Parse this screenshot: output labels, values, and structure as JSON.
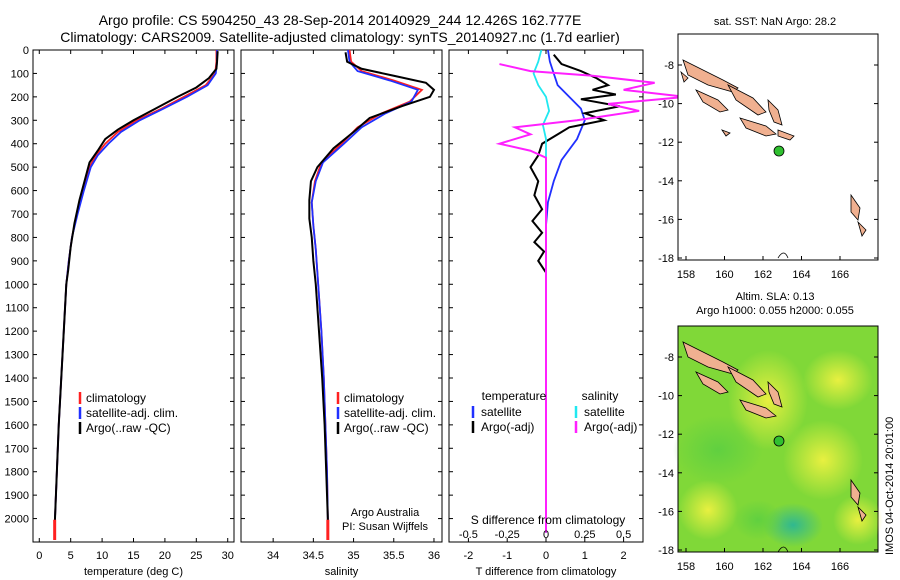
{
  "header": {
    "line1": "Argo profile: CS 5904250_43 28-Sep-2014 20140929_244 12.426S 162.777E",
    "line2": "Climatology: CARS2009. Satellite-adjusted climatology: synTS_20140927.nc (1.7d earlier)"
  },
  "colors": {
    "clim": "#ff2020",
    "sat": "#2030ff",
    "argo": "#000000",
    "sat_s": "#20e8f0",
    "argo_s": "#ff20ff",
    "land": "#f0b090",
    "float": "#30c030"
  },
  "chart_data": [
    {
      "type": "line",
      "name": "temperature-profile",
      "xlabel": "temperature (deg C)",
      "ylabel": "",
      "xlim": [
        -1,
        31
      ],
      "ylim": [
        2100,
        0
      ],
      "xticks": [
        0,
        5,
        10,
        15,
        20,
        25,
        30
      ],
      "yticks": [
        0,
        100,
        200,
        300,
        400,
        500,
        600,
        700,
        800,
        900,
        1000,
        1100,
        1200,
        1300,
        1400,
        1500,
        1600,
        1700,
        1800,
        1900,
        2000
      ],
      "legend": [
        "climatology",
        "satellite-adj. clim.",
        "Argo(..raw -QC)"
      ],
      "series": [
        {
          "name": "climatology",
          "color": "#ff2020",
          "points": [
            [
              28.2,
              0
            ],
            [
              28.2,
              50
            ],
            [
              28.0,
              100
            ],
            [
              26.5,
              150
            ],
            [
              23.0,
              200
            ],
            [
              19.5,
              250
            ],
            [
              15.5,
              300
            ],
            [
              12.5,
              350
            ],
            [
              10.5,
              400
            ],
            [
              9.0,
              450
            ],
            [
              8.0,
              500
            ],
            [
              7.0,
              600
            ],
            [
              6.0,
              700
            ],
            [
              5.2,
              800
            ],
            [
              4.7,
              900
            ],
            [
              4.3,
              1000
            ],
            [
              3.9,
              1200
            ],
            [
              3.5,
              1400
            ],
            [
              3.1,
              1600
            ],
            [
              2.8,
              1800
            ],
            [
              2.5,
              2000
            ],
            [
              2.45,
              2060
            ]
          ]
        },
        {
          "name": "satellite-adj. clim.",
          "color": "#2030ff",
          "points": [
            [
              28.3,
              0
            ],
            [
              28.3,
              50
            ],
            [
              28.1,
              100
            ],
            [
              26.8,
              150
            ],
            [
              23.5,
              200
            ],
            [
              19.8,
              250
            ],
            [
              16.0,
              300
            ],
            [
              13.0,
              350
            ],
            [
              11.0,
              400
            ],
            [
              9.3,
              450
            ],
            [
              8.2,
              500
            ],
            [
              7.1,
              600
            ],
            [
              6.1,
              700
            ],
            [
              5.2,
              800
            ],
            [
              4.7,
              900
            ],
            [
              4.3,
              1000
            ],
            [
              3.9,
              1200
            ],
            [
              3.5,
              1400
            ],
            [
              3.1,
              1600
            ],
            [
              2.8,
              1800
            ],
            [
              2.5,
              2000
            ],
            [
              2.45,
              2060
            ]
          ]
        },
        {
          "name": "Argo(..raw -QC)",
          "color": "#000000",
          "points": [
            [
              28.4,
              5
            ],
            [
              28.3,
              50
            ],
            [
              28.2,
              80
            ],
            [
              27.0,
              120
            ],
            [
              25.0,
              160
            ],
            [
              22.0,
              200
            ],
            [
              18.5,
              250
            ],
            [
              15.0,
              300
            ],
            [
              12.5,
              340
            ],
            [
              10.5,
              380
            ],
            [
              9.3,
              430
            ],
            [
              8.0,
              480
            ],
            [
              7.2,
              560
            ],
            [
              6.4,
              640
            ],
            [
              5.6,
              740
            ],
            [
              5.0,
              840
            ],
            [
              4.6,
              940
            ],
            [
              4.3,
              1000
            ],
            [
              3.9,
              1200
            ],
            [
              3.5,
              1400
            ],
            [
              3.1,
              1600
            ],
            [
              2.8,
              1800
            ],
            [
              2.5,
              2000
            ],
            [
              2.45,
              2060
            ]
          ]
        }
      ]
    },
    {
      "type": "line",
      "name": "salinity-profile",
      "xlabel": "salinity",
      "ylabel": "",
      "xlim": [
        33.6,
        36.1
      ],
      "ylim": [
        2100,
        0
      ],
      "xticks": [
        34,
        34.5,
        35,
        35.5,
        36
      ],
      "legend": [
        "climatology",
        "satellite-adj. clim.",
        "Argo(..raw -QC)"
      ],
      "annotation": [
        "Argo Australia",
        "PI: Susan Wijffels"
      ],
      "series": [
        {
          "name": "climatology",
          "color": "#ff2020",
          "points": [
            [
              34.95,
              0
            ],
            [
              34.97,
              50
            ],
            [
              35.1,
              90
            ],
            [
              35.5,
              130
            ],
            [
              35.85,
              170
            ],
            [
              35.7,
              220
            ],
            [
              35.35,
              270
            ],
            [
              35.05,
              330
            ],
            [
              34.85,
              400
            ],
            [
              34.6,
              480
            ],
            [
              34.52,
              560
            ],
            [
              34.48,
              650
            ],
            [
              34.5,
              750
            ],
            [
              34.53,
              850
            ],
            [
              34.56,
              1000
            ],
            [
              34.6,
              1200
            ],
            [
              34.63,
              1400
            ],
            [
              34.65,
              1600
            ],
            [
              34.67,
              1800
            ],
            [
              34.68,
              2000
            ],
            [
              34.68,
              2060
            ]
          ]
        },
        {
          "name": "satellite-adj. clim.",
          "color": "#2030ff",
          "points": [
            [
              34.93,
              0
            ],
            [
              34.95,
              50
            ],
            [
              35.05,
              90
            ],
            [
              35.45,
              130
            ],
            [
              35.8,
              170
            ],
            [
              35.72,
              220
            ],
            [
              35.4,
              270
            ],
            [
              35.1,
              330
            ],
            [
              34.88,
              400
            ],
            [
              34.62,
              480
            ],
            [
              34.53,
              560
            ],
            [
              34.48,
              650
            ],
            [
              34.5,
              750
            ],
            [
              34.53,
              850
            ],
            [
              34.56,
              1000
            ],
            [
              34.6,
              1200
            ],
            [
              34.63,
              1400
            ],
            [
              34.65,
              1600
            ],
            [
              34.67,
              1800
            ],
            [
              34.68,
              2000
            ],
            [
              34.68,
              2060
            ]
          ]
        },
        {
          "name": "Argo(..raw -QC)",
          "color": "#000000",
          "points": [
            [
              34.9,
              10
            ],
            [
              34.92,
              50
            ],
            [
              35.1,
              80
            ],
            [
              35.5,
              110
            ],
            [
              35.9,
              140
            ],
            [
              36.0,
              170
            ],
            [
              35.95,
              200
            ],
            [
              35.6,
              240
            ],
            [
              35.2,
              290
            ],
            [
              35.0,
              350
            ],
            [
              34.75,
              420
            ],
            [
              34.55,
              500
            ],
            [
              34.47,
              560
            ],
            [
              34.45,
              640
            ],
            [
              34.45,
              720
            ],
            [
              34.48,
              800
            ],
            [
              34.5,
              900
            ],
            [
              34.53,
              1000
            ],
            [
              34.57,
              1200
            ],
            [
              34.61,
              1400
            ],
            [
              34.64,
              1600
            ],
            [
              34.66,
              1800
            ],
            [
              34.68,
              2000
            ],
            [
              34.68,
              2060
            ]
          ]
        }
      ]
    },
    {
      "type": "line",
      "name": "difference-profile",
      "xlabel": "T difference from climatology",
      "xlabel_top": "S difference from climatology",
      "xlim": [
        -2.5,
        2.5
      ],
      "ylim": [
        2100,
        0
      ],
      "xticks": [
        -2,
        -1,
        0,
        1,
        2
      ],
      "xticks_s": [
        -0.5,
        -0.25,
        0,
        0.25,
        0.5
      ],
      "legend_t_title": "temperature",
      "legend_s_title": "salinity",
      "legend": [
        "satellite",
        "Argo(-adj)",
        "satellite",
        "Argo(-adj)"
      ],
      "series": [
        {
          "name": "T satellite",
          "color": "#2030ff",
          "points": [
            [
              0.05,
              0
            ],
            [
              0.1,
              50
            ],
            [
              0.2,
              100
            ],
            [
              0.3,
              150
            ],
            [
              0.6,
              200
            ],
            [
              0.9,
              250
            ],
            [
              1.0,
              300
            ],
            [
              0.8,
              380
            ],
            [
              0.4,
              470
            ],
            [
              0.2,
              560
            ],
            [
              0.05,
              650
            ],
            [
              0,
              750
            ],
            [
              0,
              900
            ],
            [
              0,
              2060
            ]
          ]
        },
        {
          "name": "T Argo(-adj)",
          "color": "#000000",
          "points": [
            [
              0.2,
              20
            ],
            [
              0.4,
              60
            ],
            [
              0.9,
              90
            ],
            [
              1.3,
              120
            ],
            [
              1.6,
              150
            ],
            [
              1.2,
              170
            ],
            [
              1.8,
              190
            ],
            [
              0.9,
              210
            ],
            [
              1.9,
              240
            ],
            [
              1.0,
              270
            ],
            [
              1.5,
              300
            ],
            [
              0.6,
              330
            ],
            [
              0.3,
              360
            ],
            [
              -0.1,
              400
            ],
            [
              -0.2,
              450
            ],
            [
              -0.4,
              500
            ],
            [
              -0.2,
              560
            ],
            [
              -0.3,
              620
            ],
            [
              -0.1,
              680
            ],
            [
              -0.35,
              730
            ],
            [
              -0.1,
              780
            ],
            [
              -0.3,
              820
            ],
            [
              -0.05,
              860
            ],
            [
              -0.2,
              900
            ],
            [
              0,
              950
            ],
            [
              0,
              1000
            ],
            [
              0,
              1200
            ],
            [
              0,
              2060
            ]
          ]
        },
        {
          "name": "S satellite",
          "color": "#20e8f0",
          "points": [
            [
              -0.03,
              0
            ],
            [
              -0.05,
              50
            ],
            [
              -0.08,
              100
            ],
            [
              -0.05,
              150
            ],
            [
              0,
              200
            ],
            [
              0.02,
              260
            ],
            [
              -0.02,
              320
            ],
            [
              0,
              380
            ],
            [
              0,
              2060
            ]
          ]
        },
        {
          "name": "S Argo(-adj)",
          "color": "#ff20ff",
          "points": [
            [
              -0.3,
              60
            ],
            [
              -0.1,
              90
            ],
            [
              0.3,
              110
            ],
            [
              0.7,
              140
            ],
            [
              0.5,
              170
            ],
            [
              0.9,
              200
            ],
            [
              0.4,
              230
            ],
            [
              0.6,
              260
            ],
            [
              0.2,
              300
            ],
            [
              -0.2,
              330
            ],
            [
              -0.1,
              360
            ],
            [
              -0.3,
              400
            ],
            [
              -0.1,
              430
            ],
            [
              0,
              460
            ],
            [
              0,
              2060
            ]
          ]
        }
      ]
    }
  ],
  "map_sst": {
    "title": "sat. SST: NaN Argo: 28.2",
    "xticks": [
      "158",
      "160",
      "162",
      "164",
      "166"
    ],
    "yticks": [
      "-8",
      "-10",
      "-12",
      "-14",
      "-16",
      "-18"
    ]
  },
  "map_sla": {
    "title1": "Altim. SLA: 0.13",
    "title2": "Argo h1000: 0.055 h2000: 0.055",
    "xticks": [
      "158",
      "160",
      "162",
      "164",
      "166"
    ],
    "yticks": [
      "-8",
      "-10",
      "-12",
      "-14",
      "-16",
      "-18"
    ]
  },
  "footer": {
    "imos_stamp": "IMOS 04-Oct-2014 20:01:00"
  }
}
